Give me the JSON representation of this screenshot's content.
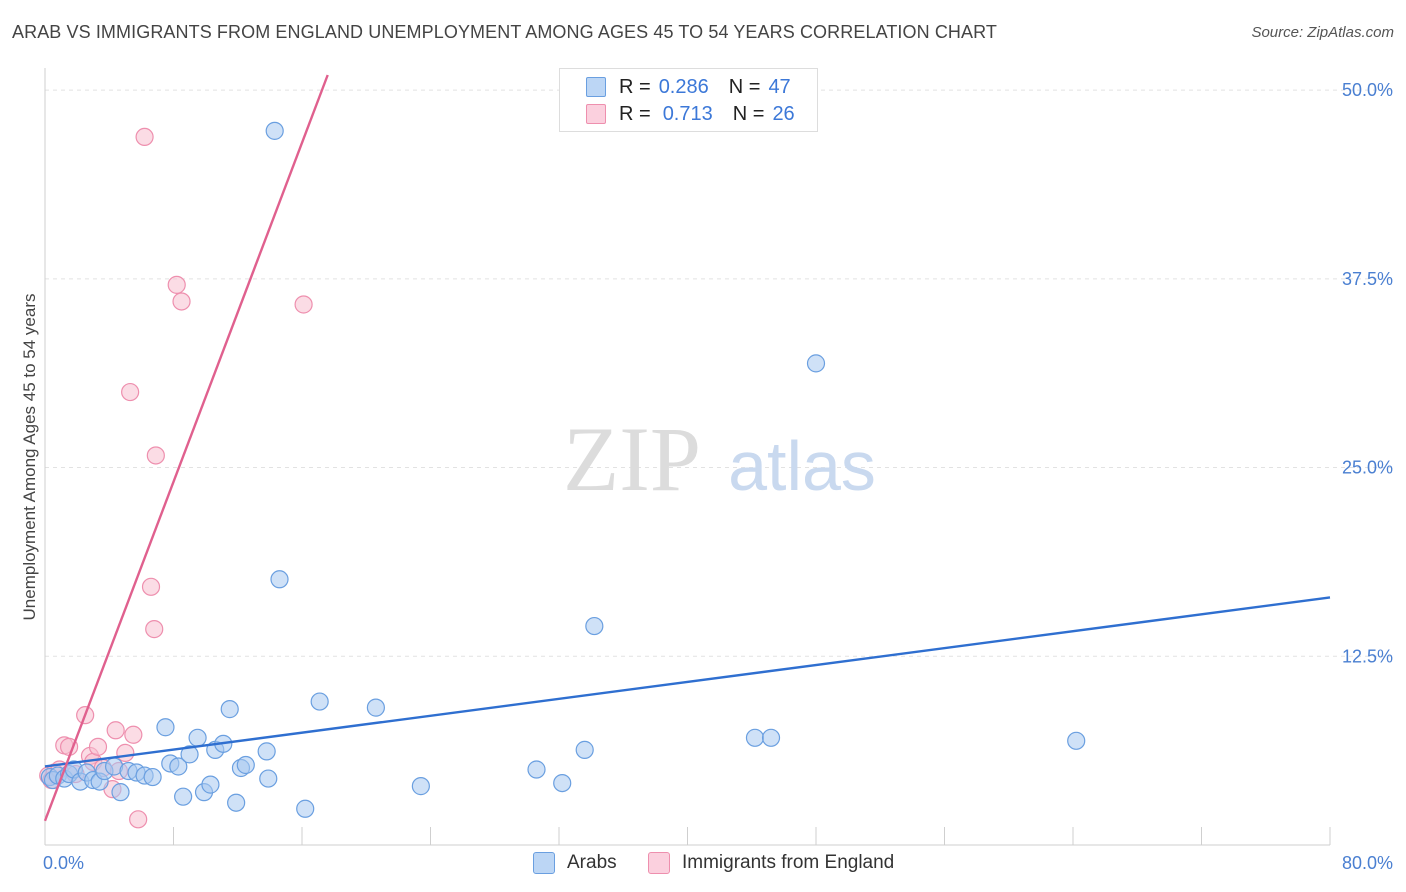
{
  "title": "ARAB VS IMMIGRANTS FROM ENGLAND UNEMPLOYMENT AMONG AGES 45 TO 54 YEARS CORRELATION CHART",
  "source": "Source: ZipAtlas.com",
  "watermark": {
    "zip": "ZIP",
    "atlas": "atlas"
  },
  "legend": {
    "rows": [
      {
        "r_label": "R =",
        "r_value": "0.286",
        "n_label": "N =",
        "n_value": "47"
      },
      {
        "r_label": "R =",
        "r_value": "0.713",
        "n_label": "N =",
        "n_value": "26"
      }
    ]
  },
  "bottom_legend": {
    "arabs": "Arabs",
    "england": "Immigrants from England"
  },
  "colors": {
    "arabs_fill": "#a8c8f0",
    "arabs_stroke": "#6a9fe0",
    "arabs_line": "#2f6fd0",
    "england_fill": "#f8bfd0",
    "england_stroke": "#ee8fae",
    "england_line": "#e0608e",
    "grid": "#e2e2e2",
    "tick": "#4a7fd1"
  },
  "chart_data": {
    "type": "scatter",
    "title": "ARAB VS IMMIGRANTS FROM ENGLAND UNEMPLOYMENT AMONG AGES 45 TO 54 YEARS CORRELATION CHART",
    "xlabel": "",
    "ylabel": "Unemployment Among Ages 45 to 54 years",
    "xlim": [
      0,
      80
    ],
    "ylim": [
      0,
      51
    ],
    "x_ticks": [
      "0.0%",
      "80.0%"
    ],
    "y_ticks": [
      {
        "value": 12.5,
        "label": "12.5%"
      },
      {
        "value": 25.0,
        "label": "25.0%"
      },
      {
        "value": 37.5,
        "label": "37.5%"
      },
      {
        "value": 50.0,
        "label": "50.0%"
      }
    ],
    "series": [
      {
        "name": "Arabs",
        "r": 0.286,
        "n": 47,
        "trend": {
          "x": [
            0,
            80
          ],
          "y": [
            5.2,
            16.4
          ]
        },
        "points": [
          [
            0.3,
            4.5
          ],
          [
            0.5,
            4.3
          ],
          [
            0.8,
            4.6
          ],
          [
            1.2,
            4.4
          ],
          [
            1.5,
            4.7
          ],
          [
            1.8,
            5.0
          ],
          [
            2.2,
            4.2
          ],
          [
            2.6,
            4.8
          ],
          [
            3.0,
            4.3
          ],
          [
            3.4,
            4.2
          ],
          [
            3.7,
            4.9
          ],
          [
            4.3,
            5.2
          ],
          [
            4.7,
            3.5
          ],
          [
            5.2,
            4.9
          ],
          [
            5.7,
            4.8
          ],
          [
            6.2,
            4.6
          ],
          [
            6.7,
            4.5
          ],
          [
            7.5,
            7.8
          ],
          [
            7.8,
            5.4
          ],
          [
            8.3,
            5.2
          ],
          [
            8.6,
            3.2
          ],
          [
            9.0,
            6.0
          ],
          [
            9.5,
            7.1
          ],
          [
            9.9,
            3.5
          ],
          [
            10.3,
            4.0
          ],
          [
            10.6,
            6.3
          ],
          [
            11.1,
            6.7
          ],
          [
            11.5,
            9.0
          ],
          [
            11.9,
            2.8
          ],
          [
            12.2,
            5.1
          ],
          [
            12.5,
            5.3
          ],
          [
            13.8,
            6.2
          ],
          [
            13.9,
            4.4
          ],
          [
            14.3,
            47.3
          ],
          [
            14.6,
            17.6
          ],
          [
            16.2,
            2.4
          ],
          [
            17.1,
            9.5
          ],
          [
            20.6,
            9.1
          ],
          [
            23.4,
            3.9
          ],
          [
            30.6,
            5.0
          ],
          [
            32.2,
            4.1
          ],
          [
            33.6,
            6.3
          ],
          [
            34.2,
            14.5
          ],
          [
            44.2,
            7.1
          ],
          [
            45.2,
            7.1
          ],
          [
            48.0,
            31.9
          ],
          [
            64.2,
            6.9
          ]
        ]
      },
      {
        "name": "Immigrants from England",
        "r": 0.713,
        "n": 26,
        "trend": {
          "x": [
            0,
            17.6
          ],
          "y": [
            1.6,
            51.0
          ]
        },
        "points": [
          [
            0.2,
            4.6
          ],
          [
            0.4,
            4.3
          ],
          [
            0.6,
            4.8
          ],
          [
            0.9,
            5.0
          ],
          [
            1.2,
            6.6
          ],
          [
            1.5,
            6.5
          ],
          [
            1.9,
            4.7
          ],
          [
            2.5,
            8.6
          ],
          [
            2.8,
            5.9
          ],
          [
            3.0,
            5.5
          ],
          [
            3.3,
            6.5
          ],
          [
            3.6,
            5.1
          ],
          [
            4.2,
            3.7
          ],
          [
            4.4,
            7.6
          ],
          [
            5.0,
            6.1
          ],
          [
            5.5,
            7.3
          ],
          [
            5.8,
            1.7
          ],
          [
            6.2,
            46.9
          ],
          [
            6.6,
            17.1
          ],
          [
            6.8,
            14.3
          ],
          [
            5.3,
            30.0
          ],
          [
            6.9,
            25.8
          ],
          [
            8.2,
            37.1
          ],
          [
            8.5,
            36.0
          ],
          [
            16.1,
            35.8
          ],
          [
            4.6,
            4.9
          ]
        ]
      }
    ]
  }
}
